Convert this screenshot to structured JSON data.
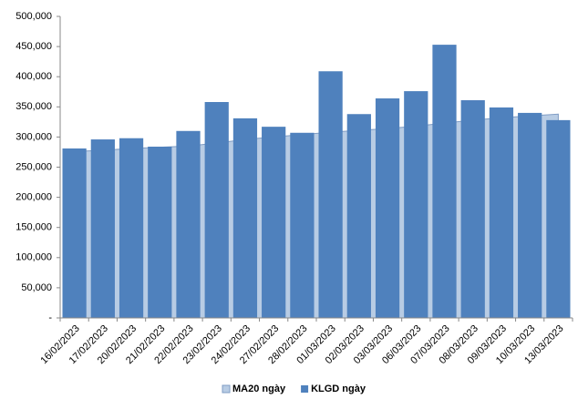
{
  "chart_data": {
    "type": "bar",
    "categories": [
      "16/02/2023",
      "17/02/2023",
      "20/02/2023",
      "21/02/2023",
      "22/02/2023",
      "23/02/2023",
      "24/02/2023",
      "27/02/2023",
      "28/02/2023",
      "01/03/2023",
      "02/03/2023",
      "03/03/2023",
      "06/03/2023",
      "07/03/2023",
      "08/03/2023",
      "09/03/2023",
      "10/03/2023",
      "13/03/2023"
    ],
    "series": [
      {
        "name": "MA20 ngày",
        "type": "area",
        "color": "#b8cce4",
        "values": [
          276000,
          278000,
          281000,
          283000,
          285000,
          290000,
          296000,
          300000,
          304000,
          308000,
          311000,
          314000,
          318000,
          323000,
          328000,
          332000,
          335000,
          338000
        ]
      },
      {
        "name": "KLGD ngày",
        "type": "bar",
        "color": "#4f81bd",
        "values": [
          281000,
          296000,
          298000,
          284000,
          310000,
          358000,
          331000,
          317000,
          307000,
          409000,
          338000,
          364000,
          376000,
          453000,
          361000,
          349000,
          340000,
          328000
        ]
      }
    ],
    "ylim": [
      0,
      500000
    ],
    "yticks": [
      {
        "value": 0,
        "label": "-"
      },
      {
        "value": 50000,
        "label": "50,000"
      },
      {
        "value": 100000,
        "label": "100,000"
      },
      {
        "value": 150000,
        "label": "150,000"
      },
      {
        "value": 200000,
        "label": "200,000"
      },
      {
        "value": 250000,
        "label": "250,000"
      },
      {
        "value": 300000,
        "label": "300,000"
      },
      {
        "value": 350000,
        "label": "350,000"
      },
      {
        "value": 400000,
        "label": "400,000"
      },
      {
        "value": 450000,
        "label": "450,000"
      },
      {
        "value": 500000,
        "label": "500,000"
      }
    ],
    "legend": "bottom"
  }
}
